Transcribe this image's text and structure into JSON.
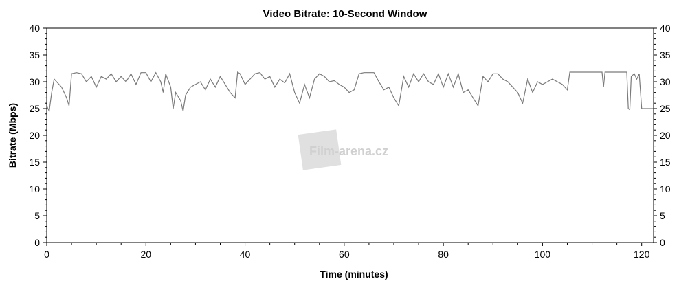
{
  "chart_data": {
    "type": "line",
    "title": "Video Bitrate: 10-Second Window",
    "xlabel": "Time (minutes)",
    "ylabel": "Bitrate (Mbps)",
    "xlim": [
      0,
      122.4
    ],
    "ylim": [
      0,
      40
    ],
    "xticks": [
      0,
      20,
      40,
      60,
      80,
      100,
      120
    ],
    "yticks": [
      0,
      5,
      10,
      15,
      20,
      25,
      30,
      35,
      40
    ],
    "grid": false,
    "legend": "none",
    "line_color": "#7a7a7a",
    "watermark": "Film-arena.cz",
    "series": [
      {
        "x": [
          0,
          0.5,
          1,
          1.5,
          2,
          3,
          4,
          4.5,
          5,
          6,
          7,
          8,
          9,
          10,
          11,
          12,
          13,
          14,
          15,
          16,
          17,
          18,
          19,
          20,
          21,
          22,
          23,
          23.5,
          24,
          25,
          25.5,
          26,
          27,
          27.5,
          28,
          29,
          30,
          31,
          32,
          33,
          34,
          35,
          36,
          37,
          38,
          38.5,
          39,
          40,
          41,
          42,
          43,
          44,
          45,
          46,
          47,
          48,
          49,
          50,
          51,
          52,
          53,
          54,
          55,
          56,
          57,
          58,
          59,
          60,
          61,
          62,
          63,
          64,
          65,
          66,
          67,
          68,
          69,
          70,
          71,
          72,
          73,
          74,
          75,
          76,
          77,
          78,
          79,
          80,
          81,
          82,
          83,
          84,
          85,
          86,
          87,
          88,
          89,
          90,
          91,
          92,
          93,
          94,
          95,
          96,
          97,
          98,
          99,
          100,
          101,
          102,
          103,
          104,
          105,
          105.5,
          108,
          112,
          112.3,
          112.6,
          115,
          117,
          117.3,
          117.6,
          117.9,
          118.5,
          119,
          119.5,
          120,
          122.4
        ],
        "y": [
          25.5,
          24.5,
          28,
          30.5,
          30,
          29,
          27,
          25.5,
          31.5,
          31.7,
          31.5,
          30,
          31,
          29,
          31,
          30.5,
          31.5,
          30,
          31,
          30,
          31.5,
          29.5,
          31.7,
          31.7,
          30,
          31.7,
          30,
          28,
          31.5,
          29,
          25,
          28,
          26.5,
          24.5,
          27.5,
          29,
          29.5,
          30,
          28.5,
          30.5,
          29,
          31,
          29.5,
          28,
          27,
          31.8,
          31.5,
          29.5,
          30.5,
          31.5,
          31.7,
          30.5,
          31,
          29,
          30.5,
          29.8,
          31.5,
          28,
          26,
          29.5,
          27,
          30.5,
          31.5,
          31,
          30,
          30.2,
          29.5,
          29,
          28,
          28.5,
          31.5,
          31.7,
          31.7,
          31.7,
          30,
          28.5,
          29,
          27,
          25.5,
          31,
          29,
          31.5,
          30,
          31.5,
          30,
          29.5,
          31.5,
          29,
          31.5,
          29,
          31.5,
          28,
          28.5,
          27,
          25.5,
          31,
          30,
          31.5,
          31.5,
          30.5,
          30,
          29,
          28,
          26,
          30.5,
          28,
          30,
          29.5,
          30,
          30.5,
          30,
          29.5,
          28.5,
          31.8,
          31.8,
          31.8,
          29,
          31.8,
          31.8,
          31.8,
          25,
          24.8,
          31,
          31.5,
          30.5,
          31.5,
          25,
          25
        ]
      }
    ]
  }
}
